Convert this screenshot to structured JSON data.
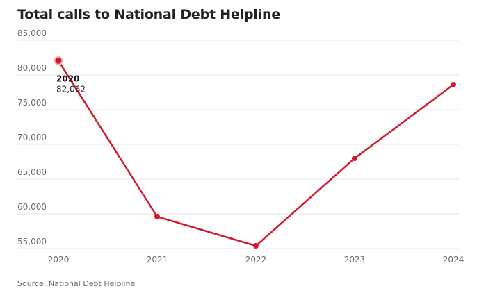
{
  "chart_data": {
    "type": "line",
    "title": "Total calls to National Debt Helpline",
    "xlabel": "",
    "ylabel": "",
    "x": [
      "2020",
      "2021",
      "2022",
      "2023",
      "2024"
    ],
    "series": [
      {
        "values": [
          82062,
          59600,
          55400,
          68000,
          78600
        ]
      }
    ],
    "ylim": [
      55000,
      85000
    ],
    "yticks": [
      55000,
      60000,
      65000,
      70000,
      75000,
      80000,
      85000
    ],
    "ytick_labels": [
      "55,000",
      "60,000",
      "65,000",
      "70,000",
      "75,000",
      "80,000",
      "85,000"
    ],
    "grid": true,
    "annotation": {
      "year": "2020",
      "value_label": "82,062"
    },
    "source": "Source: National Debt Helpline",
    "colors": {
      "line": "#d0192d",
      "grid": "#e6e6e6",
      "axis_text": "#6b6b6b"
    }
  }
}
